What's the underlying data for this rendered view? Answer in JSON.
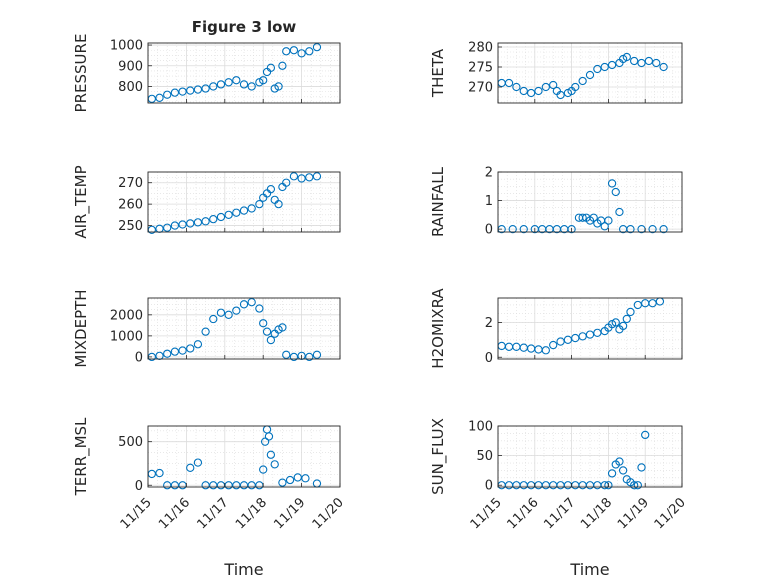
{
  "figure": {
    "title": "Figure 3 low"
  },
  "xaxis": {
    "label": "Time",
    "ticks": [
      "11/15",
      "11/16",
      "11/17",
      "11/18",
      "11/19",
      "11/20"
    ],
    "range": [
      0,
      5
    ]
  },
  "colors": {
    "marker": "#0072BD",
    "grid": "#dcdcdc",
    "axis": "#262626"
  },
  "chart_data": [
    {
      "type": "scatter",
      "name": "pressure",
      "ylabel": "PRESSURE",
      "ylim": [
        720,
        1010
      ],
      "yticks": [
        800,
        900,
        1000
      ],
      "grid": true,
      "x": [
        0.1,
        0.3,
        0.5,
        0.7,
        0.9,
        1.1,
        1.3,
        1.5,
        1.7,
        1.9,
        2.1,
        2.3,
        2.5,
        2.7,
        2.9,
        3.0,
        3.1,
        3.2,
        3.3,
        3.4,
        3.5,
        3.6,
        3.8,
        4.0,
        4.2,
        4.4
      ],
      "y": [
        740,
        745,
        760,
        770,
        775,
        780,
        785,
        790,
        800,
        810,
        820,
        830,
        810,
        800,
        820,
        830,
        870,
        890,
        790,
        800,
        900,
        970,
        975,
        960,
        970,
        990
      ]
    },
    {
      "type": "scatter",
      "name": "theta",
      "ylabel": "THETA",
      "ylim": [
        266,
        281
      ],
      "yticks": [
        270,
        275,
        280
      ],
      "grid": true,
      "x": [
        0.1,
        0.3,
        0.5,
        0.7,
        0.9,
        1.1,
        1.3,
        1.5,
        1.6,
        1.7,
        1.9,
        2.0,
        2.1,
        2.3,
        2.5,
        2.7,
        2.9,
        3.1,
        3.3,
        3.4,
        3.5,
        3.7,
        3.9,
        4.1,
        4.3,
        4.5
      ],
      "y": [
        271,
        271,
        270,
        269,
        268.5,
        269,
        270,
        270.5,
        269,
        268,
        268.5,
        269,
        270,
        271.5,
        273,
        274.5,
        275,
        275.5,
        276,
        277,
        277.5,
        276.5,
        276,
        276.5,
        276,
        275
      ]
    },
    {
      "type": "scatter",
      "name": "air_temp",
      "ylabel": "AIR_TEMP",
      "ylim": [
        247,
        275
      ],
      "yticks": [
        250,
        260,
        270
      ],
      "grid": true,
      "x": [
        0.1,
        0.3,
        0.5,
        0.7,
        0.9,
        1.1,
        1.3,
        1.5,
        1.7,
        1.9,
        2.1,
        2.3,
        2.5,
        2.7,
        2.9,
        3.0,
        3.1,
        3.2,
        3.3,
        3.4,
        3.5,
        3.6,
        3.8,
        4.0,
        4.2,
        4.4
      ],
      "y": [
        248,
        248.5,
        249,
        250,
        250.5,
        251,
        251.5,
        252,
        253,
        254,
        255,
        256,
        257,
        258,
        260,
        263,
        265,
        267,
        262,
        260,
        268,
        270,
        273,
        272,
        272.5,
        273
      ]
    },
    {
      "type": "scatter",
      "name": "rainfall",
      "ylabel": "RAINFALL",
      "ylim": [
        -0.1,
        2
      ],
      "yticks": [
        0,
        1,
        2
      ],
      "grid": true,
      "x": [
        0.1,
        0.4,
        0.7,
        1.0,
        1.2,
        1.4,
        1.6,
        1.8,
        2.0,
        2.2,
        2.3,
        2.4,
        2.5,
        2.6,
        2.7,
        2.8,
        2.9,
        3.0,
        3.1,
        3.2,
        3.3,
        3.4,
        3.6,
        3.9,
        4.2,
        4.5
      ],
      "y": [
        0,
        0,
        0,
        0,
        0,
        0,
        0,
        0,
        0,
        0.4,
        0.4,
        0.4,
        0.3,
        0.4,
        0.2,
        0.3,
        0.1,
        0.3,
        1.6,
        1.3,
        0.6,
        0,
        0,
        0,
        0,
        0
      ]
    },
    {
      "type": "scatter",
      "name": "mixdepth",
      "ylabel": "MIXDEPTH",
      "ylim": [
        -100,
        2800
      ],
      "yticks": [
        0,
        1000,
        2000
      ],
      "grid": true,
      "x": [
        0.1,
        0.3,
        0.5,
        0.7,
        0.9,
        1.1,
        1.3,
        1.5,
        1.7,
        1.9,
        2.1,
        2.3,
        2.5,
        2.7,
        2.9,
        3.0,
        3.1,
        3.2,
        3.3,
        3.4,
        3.5,
        3.6,
        3.8,
        4.0,
        4.2,
        4.4
      ],
      "y": [
        0,
        50,
        150,
        250,
        300,
        400,
        600,
        1200,
        1800,
        2100,
        2000,
        2200,
        2500,
        2600,
        2300,
        1600,
        1200,
        800,
        1100,
        1300,
        1400,
        100,
        0,
        50,
        0,
        100
      ]
    },
    {
      "type": "scatter",
      "name": "h2omixra",
      "ylabel": "H2OMIXRA",
      "ylim": [
        -0.1,
        3.4
      ],
      "yticks": [
        0,
        2
      ],
      "grid": true,
      "x": [
        0.1,
        0.3,
        0.5,
        0.7,
        0.9,
        1.1,
        1.3,
        1.5,
        1.7,
        1.9,
        2.1,
        2.3,
        2.5,
        2.7,
        2.9,
        3.0,
        3.1,
        3.2,
        3.3,
        3.4,
        3.5,
        3.6,
        3.8,
        4.0,
        4.2,
        4.4
      ],
      "y": [
        0.65,
        0.6,
        0.6,
        0.55,
        0.5,
        0.45,
        0.4,
        0.7,
        0.9,
        1.0,
        1.1,
        1.2,
        1.3,
        1.4,
        1.5,
        1.7,
        1.9,
        2.0,
        1.6,
        1.8,
        2.2,
        2.6,
        3.0,
        3.1,
        3.1,
        3.2
      ]
    },
    {
      "type": "scatter",
      "name": "terr_msl",
      "ylabel": "TERR_MSL",
      "ylim": [
        -20,
        680
      ],
      "yticks": [
        0,
        500
      ],
      "grid": true,
      "x": [
        0.1,
        0.3,
        0.5,
        0.7,
        0.9,
        1.1,
        1.3,
        1.5,
        1.7,
        1.9,
        2.1,
        2.3,
        2.5,
        2.7,
        2.9,
        3.0,
        3.05,
        3.1,
        3.15,
        3.2,
        3.3,
        3.5,
        3.7,
        3.9,
        4.1,
        4.4
      ],
      "y": [
        130,
        140,
        0,
        0,
        0,
        200,
        260,
        0,
        0,
        0,
        0,
        0,
        0,
        0,
        0,
        180,
        500,
        640,
        560,
        350,
        240,
        30,
        60,
        90,
        80,
        20
      ]
    },
    {
      "type": "scatter",
      "name": "sun_flux",
      "ylabel": "SUN_FLUX",
      "ylim": [
        -3,
        100
      ],
      "yticks": [
        0,
        50,
        100
      ],
      "grid": true,
      "x": [
        0.1,
        0.3,
        0.5,
        0.7,
        0.9,
        1.1,
        1.3,
        1.5,
        1.7,
        1.9,
        2.1,
        2.3,
        2.5,
        2.7,
        2.9,
        3.0,
        3.1,
        3.2,
        3.3,
        3.4,
        3.5,
        3.6,
        3.7,
        3.8,
        3.9,
        4.0
      ],
      "y": [
        0,
        0,
        0,
        0,
        0,
        0,
        0,
        0,
        0,
        0,
        0,
        0,
        0,
        0,
        0,
        0,
        20,
        35,
        40,
        25,
        10,
        5,
        0,
        0,
        30,
        85
      ]
    }
  ]
}
